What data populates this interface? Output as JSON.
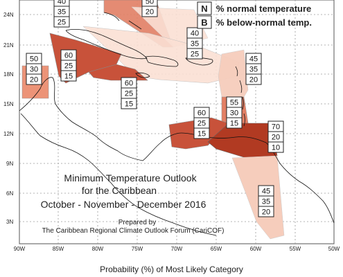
{
  "colors": {
    "above_70": "#b13a22",
    "above_60": "#c8523a",
    "above_55": "#e27f64",
    "above_50": "#ec9377",
    "above_45": "#f6cdbc",
    "above_40": "#fbe0d4",
    "gridline": "#9a9a9a",
    "coast": "#111111"
  },
  "legend": {
    "n_letter": "N",
    "n_text": "% normal temperature",
    "b_letter": "B",
    "b_text": "% below-normal temp."
  },
  "axis": {
    "lat_labels": [
      "24N",
      "21N",
      "18N",
      "15N",
      "12N",
      "9N",
      "6N",
      "3N"
    ],
    "lon_labels": [
      "90W",
      "85W",
      "80W",
      "75W",
      "70W",
      "65W",
      "60W",
      "55W",
      "50W"
    ]
  },
  "title": {
    "line1": "Minimum Temperature Outlook",
    "line2": "for the Caribbean",
    "line3": "October - November - December 2016",
    "prepared1": "Prepared by",
    "prepared2": "The Caribbean Regional Climate Outlook Forum (CariCOF)"
  },
  "caption": "Probability (%) of Most Likely Category",
  "zones": [
    {
      "name": "bahamas",
      "values": [
        "40",
        "35",
        "25"
      ]
    },
    {
      "name": "north-atlantic",
      "values": [
        "50",
        "20"
      ]
    },
    {
      "name": "greater-antilles-east",
      "values": [
        "40",
        "35",
        "25"
      ]
    },
    {
      "name": "belize-yucatan",
      "values": [
        "50",
        "30",
        "20"
      ]
    },
    {
      "name": "cuba-west",
      "values": [
        "60",
        "25",
        "15"
      ]
    },
    {
      "name": "jamaica-south",
      "values": [
        "60",
        "25",
        "15"
      ]
    },
    {
      "name": "lesser-antilles-north",
      "values": [
        "45",
        "35",
        "20"
      ]
    },
    {
      "name": "windward-islands",
      "values": [
        "55",
        "30",
        "15"
      ]
    },
    {
      "name": "abc-islands",
      "values": [
        "60",
        "25",
        "15"
      ]
    },
    {
      "name": "trinidad-tobago",
      "values": [
        "70",
        "20",
        "10"
      ]
    },
    {
      "name": "guianas",
      "values": [
        "45",
        "35",
        "20"
      ]
    }
  ]
}
